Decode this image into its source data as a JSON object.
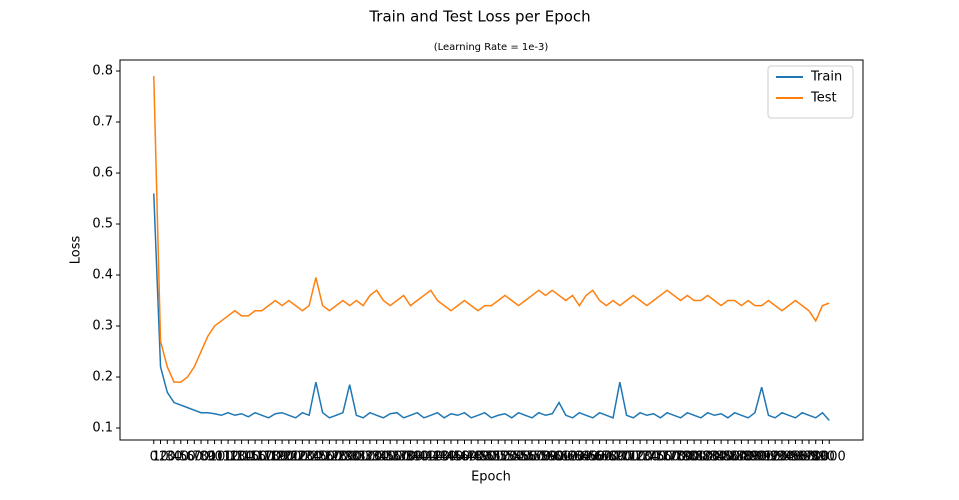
{
  "chart_data": {
    "type": "line",
    "title": "Train and Test Loss per Epoch",
    "subtitle": "(Learning Rate = 1e-3)",
    "x_label": "Epoch",
    "y_label": "Loss",
    "x": [
      0,
      10,
      20,
      30,
      40,
      50,
      60,
      70,
      80,
      90,
      100,
      110,
      120,
      130,
      140,
      150,
      160,
      170,
      180,
      190,
      200,
      210,
      220,
      230,
      240,
      250,
      260,
      270,
      280,
      290,
      300,
      310,
      320,
      330,
      340,
      350,
      360,
      370,
      380,
      390,
      400,
      410,
      420,
      430,
      440,
      450,
      460,
      470,
      480,
      490,
      500,
      510,
      520,
      530,
      540,
      550,
      560,
      570,
      580,
      590,
      600,
      610,
      620,
      630,
      640,
      650,
      660,
      670,
      680,
      690,
      700,
      710,
      720,
      730,
      740,
      750,
      760,
      770,
      780,
      790,
      800,
      810,
      820,
      830,
      840,
      850,
      860,
      870,
      880,
      890,
      900,
      910,
      920,
      930,
      940,
      950,
      960,
      970,
      980,
      990,
      1000
    ],
    "series": [
      {
        "name": "Train",
        "color": "#1f77b4",
        "values": [
          0.56,
          0.22,
          0.17,
          0.15,
          0.145,
          0.14,
          0.135,
          0.13,
          0.13,
          0.128,
          0.125,
          0.13,
          0.125,
          0.128,
          0.122,
          0.13,
          0.125,
          0.12,
          0.128,
          0.13,
          0.125,
          0.12,
          0.13,
          0.125,
          0.19,
          0.13,
          0.12,
          0.125,
          0.13,
          0.185,
          0.125,
          0.12,
          0.13,
          0.125,
          0.12,
          0.128,
          0.13,
          0.12,
          0.125,
          0.13,
          0.12,
          0.125,
          0.13,
          0.12,
          0.128,
          0.125,
          0.13,
          0.12,
          0.125,
          0.13,
          0.12,
          0.125,
          0.128,
          0.12,
          0.13,
          0.125,
          0.12,
          0.13,
          0.125,
          0.128,
          0.15,
          0.125,
          0.12,
          0.13,
          0.125,
          0.12,
          0.13,
          0.125,
          0.12,
          0.19,
          0.125,
          0.12,
          0.13,
          0.125,
          0.128,
          0.12,
          0.13,
          0.125,
          0.12,
          0.13,
          0.125,
          0.12,
          0.13,
          0.125,
          0.128,
          0.12,
          0.13,
          0.125,
          0.12,
          0.13,
          0.18,
          0.125,
          0.12,
          0.13,
          0.125,
          0.12,
          0.13,
          0.125,
          0.12,
          0.13,
          0.115
        ]
      },
      {
        "name": "Test",
        "color": "#ff7f0e",
        "values": [
          0.79,
          0.27,
          0.22,
          0.19,
          0.19,
          0.2,
          0.22,
          0.25,
          0.28,
          0.3,
          0.31,
          0.32,
          0.33,
          0.32,
          0.32,
          0.33,
          0.33,
          0.34,
          0.35,
          0.34,
          0.35,
          0.34,
          0.33,
          0.34,
          0.395,
          0.34,
          0.33,
          0.34,
          0.35,
          0.34,
          0.35,
          0.34,
          0.36,
          0.37,
          0.35,
          0.34,
          0.35,
          0.36,
          0.34,
          0.35,
          0.36,
          0.37,
          0.35,
          0.34,
          0.33,
          0.34,
          0.35,
          0.34,
          0.33,
          0.34,
          0.34,
          0.35,
          0.36,
          0.35,
          0.34,
          0.35,
          0.36,
          0.37,
          0.36,
          0.37,
          0.36,
          0.35,
          0.36,
          0.34,
          0.36,
          0.37,
          0.35,
          0.34,
          0.35,
          0.34,
          0.35,
          0.36,
          0.35,
          0.34,
          0.35,
          0.36,
          0.37,
          0.36,
          0.35,
          0.36,
          0.35,
          0.35,
          0.36,
          0.35,
          0.34,
          0.35,
          0.35,
          0.34,
          0.35,
          0.34,
          0.34,
          0.35,
          0.34,
          0.33,
          0.34,
          0.35,
          0.34,
          0.33,
          0.31,
          0.34,
          0.345
        ]
      }
    ],
    "xlim": [
      -50,
      1050
    ],
    "ylim": [
      0.0765,
      0.8216
    ],
    "xticks": [
      0,
      10,
      20,
      30,
      40,
      50,
      60,
      70,
      80,
      90,
      100,
      110,
      120,
      130,
      140,
      150,
      160,
      170,
      180,
      190,
      200,
      210,
      220,
      230,
      240,
      250,
      260,
      270,
      280,
      290,
      300,
      310,
      320,
      330,
      340,
      350,
      360,
      370,
      380,
      390,
      400,
      410,
      420,
      430,
      440,
      450,
      460,
      470,
      480,
      490,
      500,
      510,
      520,
      530,
      540,
      550,
      560,
      570,
      580,
      590,
      600,
      610,
      620,
      630,
      640,
      650,
      660,
      670,
      680,
      690,
      700,
      710,
      720,
      730,
      740,
      750,
      760,
      770,
      780,
      790,
      800,
      810,
      820,
      830,
      840,
      850,
      860,
      870,
      880,
      890,
      900,
      910,
      920,
      930,
      940,
      950,
      960,
      970,
      980,
      990,
      1000
    ],
    "yticks": [
      0.1,
      0.2,
      0.3,
      0.4,
      0.5,
      0.6,
      0.7,
      0.8
    ],
    "legend": "upper right"
  }
}
